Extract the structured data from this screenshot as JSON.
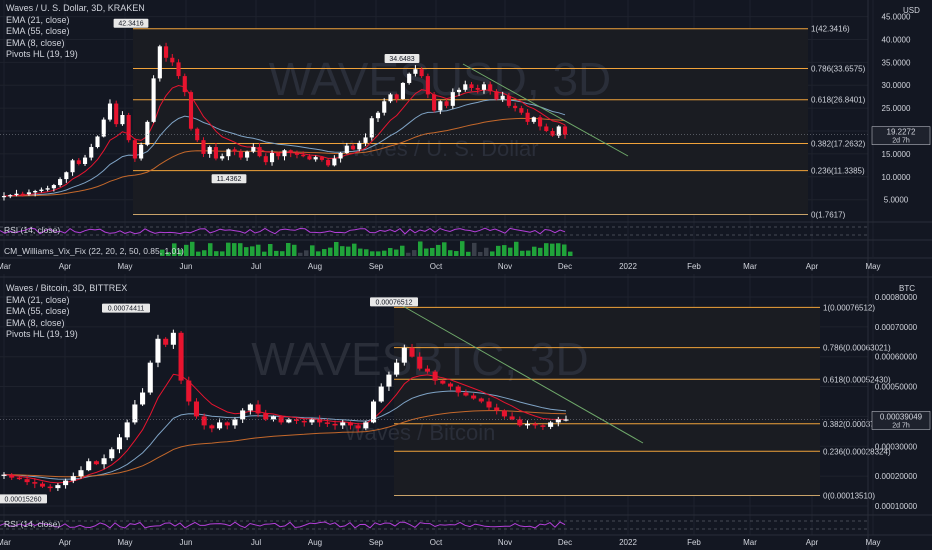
{
  "colors": {
    "bg": "#131722",
    "grid": "#1e222d",
    "up": "#ffffff",
    "down": "#e8142f",
    "fib_line": "#f0a23a",
    "fib_text": "#d1d4dc",
    "ema21": "#7fa3c5",
    "ema55": "#c4682b",
    "ema8": "#e8142f",
    "trend": "#6fa86a",
    "rsi": "#b33fd8",
    "vix_bar": "#20a33a",
    "text": "#d1d4dc"
  },
  "x_axis": {
    "labels": [
      "Mar",
      "Apr",
      "May",
      "Jun",
      "Jul",
      "Aug",
      "Sep",
      "Oct",
      "Nov",
      "Dec",
      "2022",
      "Feb",
      "Mar",
      "Apr",
      "May"
    ]
  },
  "top": {
    "title": "Waves / U. S. Dollar, 3D, KRAKEN",
    "indicators": [
      "EMA (21, close)",
      "EMA (55, close)",
      "EMA (8, close)",
      "Pivots HL (19, 19)"
    ],
    "watermark": "WAVESUSD, 3D",
    "watermark_sub": "Waves / U. S. Dollar",
    "unit": "USD",
    "rsi_label": "RSI (14, close)",
    "vix_label": "CM_Williams_Vix_Fix (22, 20, 2, 50, 0.85, 1.01)",
    "last_price": "19.2272",
    "countdown": "2d 7h",
    "pivots": [
      {
        "label": "42.3416",
        "value": 42.3416,
        "kind": "high"
      },
      {
        "label": "34.6483",
        "value": 34.6483,
        "kind": "high"
      },
      {
        "label": "11.4362",
        "value": 11.4362,
        "kind": "low"
      }
    ]
  },
  "bottom": {
    "title": "Waves / Bitcoin, 3D, BITTREX",
    "indicators": [
      "EMA (21, close)",
      "EMA (55, close)",
      "EMA (8, close)",
      "Pivots HL (19, 19)"
    ],
    "watermark": "WAVESBTC, 3D",
    "watermark_sub": "Waves / Bitcoin",
    "unit": "BTC",
    "rsi_label": "RSI (14, close)",
    "last_price": "0.00039049",
    "countdown": "2d 7h",
    "pivots": [
      {
        "label": "0.00074411",
        "value": 0.00074411,
        "kind": "high"
      },
      {
        "label": "0.00076512",
        "value": 0.00076512,
        "kind": "high"
      },
      {
        "label": "0.00015260",
        "value": 0.0001526,
        "kind": "low"
      }
    ]
  },
  "chart_data": [
    {
      "type": "candlestick",
      "title": "Waves / U. S. Dollar, 3D, KRAKEN",
      "ylabel": "USD",
      "ylim": [
        1,
        46
      ],
      "y_ticks": [
        "5.0000",
        "10.0000",
        "15.0000",
        "20.0000",
        "25.0000",
        "30.0000",
        "35.0000",
        "40.0000",
        "45.0000"
      ],
      "fib_levels": [
        {
          "label": "1(42.3416)",
          "value": 42.3416
        },
        {
          "label": "0.786(33.6575)",
          "value": 33.6575
        },
        {
          "label": "0.618(26.8401)",
          "value": 26.8401
        },
        {
          "label": "0.382(17.2632)",
          "value": 17.2632
        },
        {
          "label": "0.236(11.3385)",
          "value": 11.3385
        },
        {
          "label": "0(1.7617)",
          "value": 1.7617
        }
      ],
      "close_series": [
        5.8,
        6.0,
        6.3,
        6.2,
        6.6,
        6.9,
        7.2,
        7.5,
        8.2,
        9.5,
        11.0,
        13.6,
        12.8,
        14.2,
        16.5,
        18.8,
        22.5,
        26.0,
        21.5,
        23.5,
        18.0,
        14.0,
        17.0,
        22.0,
        31.5,
        38.5,
        36.0,
        35.0,
        32.0,
        28.5,
        20.5,
        18.0,
        15.0,
        16.5,
        14.0,
        14.5,
        16.0,
        15.5,
        14.2,
        15.5,
        16.5,
        14.5,
        13.2,
        15.2,
        14.5,
        15.8,
        15.2,
        14.8,
        14.5,
        13.8,
        14.3,
        13.7,
        12.5,
        14.0,
        15.2,
        16.8,
        16.0,
        17.4,
        18.6,
        22.8,
        24.0,
        26.5,
        28.0,
        27.0,
        30.5,
        32.5,
        33.5,
        32.0,
        28.0,
        24.5,
        26.5,
        25.5,
        28.5,
        29.0,
        30.2,
        29.4,
        29.0,
        30.2,
        28.7,
        26.9,
        27.7,
        25.5,
        25.0,
        24.0,
        22.0,
        23.0,
        21.0,
        20.0,
        19.0,
        21.0,
        19.2
      ]
    },
    {
      "type": "candlestick",
      "title": "Waves / Bitcoin, 3D, BITTREX",
      "ylabel": "BTC",
      "ylim": [
        8e-05,
        0.00083
      ],
      "y_ticks": [
        "0.00010000",
        "0.00020000",
        "0.00030000",
        "0.00040000",
        "0.00050000",
        "0.00060000",
        "0.00070000",
        "0.00080000"
      ],
      "fib_levels": [
        {
          "label": "1(0.00076512)",
          "value": 0.00076512
        },
        {
          "label": "0.786(0.00063021)",
          "value": 0.00063021
        },
        {
          "label": "0.618(0.00052430)",
          "value": 0.0005243
        },
        {
          "label": "0.382(0.00037535)",
          "value": 0.00037535
        },
        {
          "label": "0.236(0.00028324)",
          "value": 0.00028324
        },
        {
          "label": "0(0.00013510)",
          "value": 0.0001351
        }
      ],
      "close_series": [
        0.000205,
        0.000195,
        0.00019,
        0.00018,
        0.000175,
        0.000165,
        0.00016,
        0.00017,
        0.000185,
        0.0002,
        0.00022,
        0.00025,
        0.00024,
        0.00026,
        0.00029,
        0.00033,
        0.00038,
        0.00044,
        0.00048,
        0.00058,
        0.00066,
        0.00064,
        0.00068,
        0.00052,
        0.00045,
        0.0004,
        0.00037,
        0.00036,
        0.00038,
        0.00037,
        0.00039,
        0.00042,
        0.00044,
        0.00041,
        0.00039,
        0.0004,
        0.00038,
        0.00039,
        0.000385,
        0.00038,
        0.00039,
        0.00038,
        0.000375,
        0.00037,
        0.00038,
        0.00037,
        0.00036,
        0.00038,
        0.00045,
        0.0005,
        0.00054,
        0.00058,
        0.00063,
        0.0006,
        0.00056,
        0.00055,
        0.00052,
        0.00051,
        0.0005,
        0.00048,
        0.00047,
        0.00046,
        0.00045,
        0.00043,
        0.00042,
        0.0004,
        0.00039,
        0.00037,
        0.000375,
        0.00037,
        0.000365,
        0.00038,
        0.00039,
        0.00039
      ]
    }
  ]
}
